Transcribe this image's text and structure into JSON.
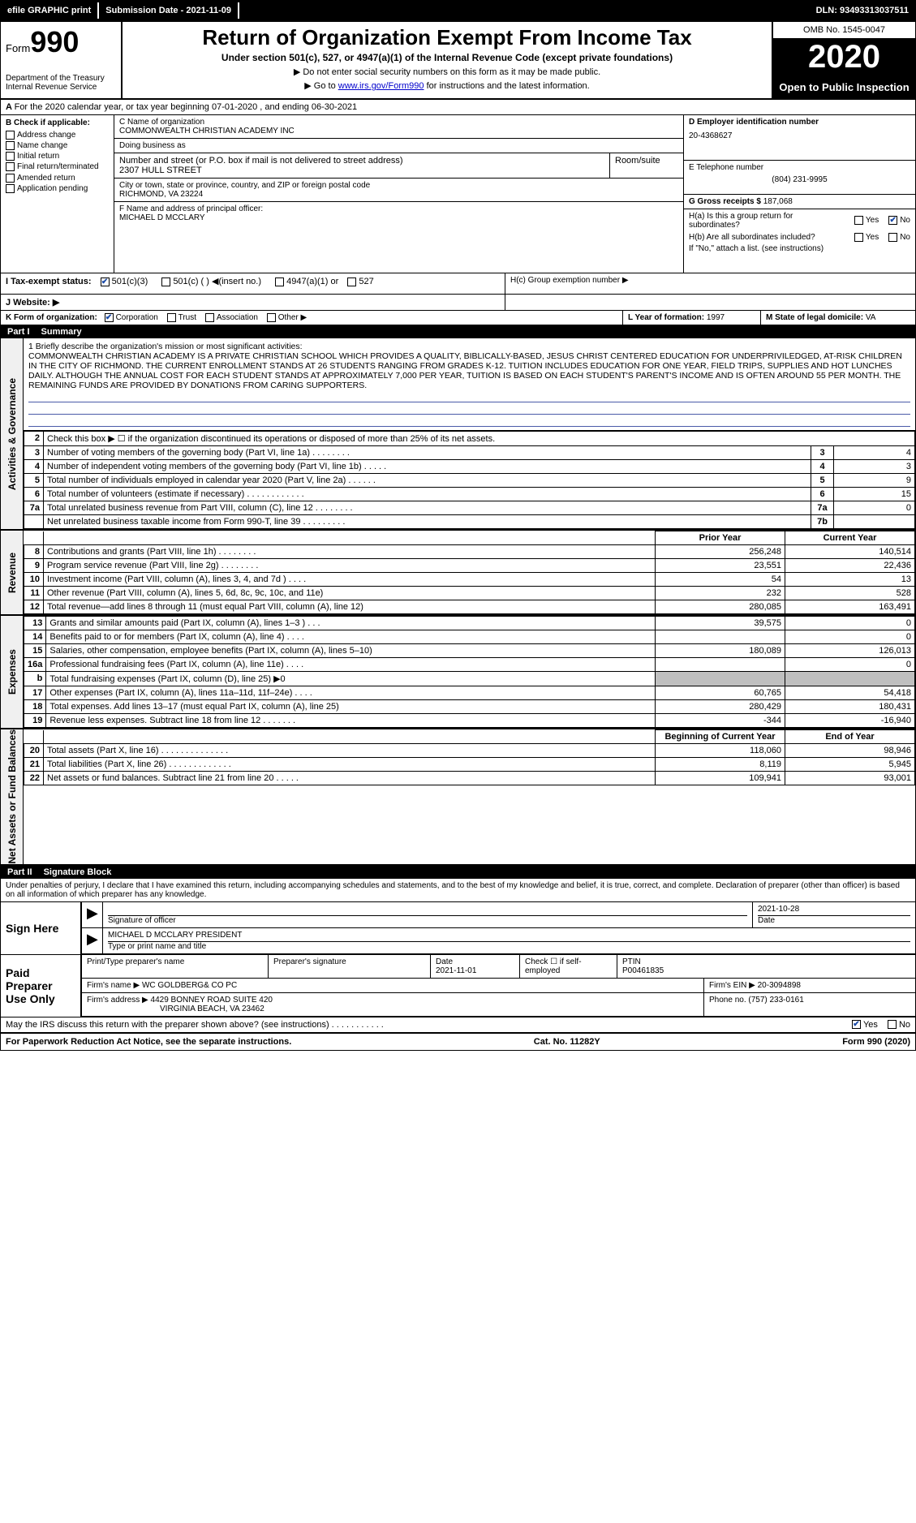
{
  "topbar": {
    "efile": "efile GRAPHIC print",
    "subdate_label": "Submission Date - ",
    "subdate": "2021-11-09",
    "dln_label": "DLN: ",
    "dln": "93493313037511"
  },
  "header": {
    "form_word": "Form",
    "form_no": "990",
    "dept": "Department of the Treasury\nInternal Revenue Service",
    "title": "Return of Organization Exempt From Income Tax",
    "sub": "Under section 501(c), 527, or 4947(a)(1) of the Internal Revenue Code (except private foundations)",
    "note1": "▶ Do not enter social security numbers on this form as it may be made public.",
    "note2_pre": "▶ Go to ",
    "note2_link": "www.irs.gov/Form990",
    "note2_post": " for instructions and the latest information.",
    "omb": "OMB No. 1545-0047",
    "year": "2020",
    "inspect": "Open to Public Inspection"
  },
  "A": {
    "text": "For the 2020 calendar year, or tax year beginning 07-01-2020  , and ending 06-30-2021"
  },
  "B": {
    "title": "B Check if applicable:",
    "items": [
      "Address change",
      "Name change",
      "Initial return",
      "Final return/terminated",
      "Amended return",
      "Application pending"
    ]
  },
  "C": {
    "name_label": "C Name of organization",
    "name": "COMMONWEALTH CHRISTIAN ACADEMY INC",
    "dba_label": "Doing business as",
    "dba": "",
    "street_label": "Number and street (or P.O. box if mail is not delivered to street address)",
    "street": "2307 HULL STREET",
    "room_label": "Room/suite",
    "room": "",
    "city_label": "City or town, state or province, country, and ZIP or foreign postal code",
    "city": "RICHMOND, VA  23224",
    "officer_label": "F  Name and address of principal officer:",
    "officer": "MICHAEL D MCCLARY"
  },
  "D": {
    "label": "D Employer identification number",
    "ein": "20-4368627"
  },
  "E": {
    "label": "E Telephone number",
    "phone": "(804) 231-9995"
  },
  "G": {
    "label": "G Gross receipts $ ",
    "val": "187,068"
  },
  "H": {
    "a": "H(a)  Is this a group return for subordinates?",
    "a_no_checked": true,
    "b": "H(b)  Are all subordinates included?",
    "b_note": "If \"No,\" attach a list. (see instructions)",
    "c": "H(c)  Group exemption number ▶"
  },
  "I": {
    "label": "I  Tax-exempt status:",
    "opts": [
      "501(c)(3)",
      "501(c) (  ) ◀(insert no.)",
      "4947(a)(1) or",
      "527"
    ],
    "checked_idx": 0
  },
  "J": {
    "label": "J  Website: ▶",
    "val": ""
  },
  "K": {
    "label": "K Form of organization:",
    "opts": [
      "Corporation",
      "Trust",
      "Association",
      "Other ▶"
    ],
    "checked_idx": 0
  },
  "L": {
    "label": "L Year of formation: ",
    "val": "1997"
  },
  "M": {
    "label": "M State of legal domicile: ",
    "val": "VA"
  },
  "part1": {
    "label": "Part I",
    "title": "Summary"
  },
  "mission": {
    "label": "1  Briefly describe the organization's mission or most significant activities:",
    "text": "COMMONWEALTH CHRISTIAN ACADEMY IS A PRIVATE CHRISTIAN SCHOOL WHICH PROVIDES A QUALITY, BIBLICALLY-BASED, JESUS CHRIST CENTERED EDUCATION FOR UNDERPRIVILEDGED, AT-RISK CHILDREN IN THE CITY OF RICHMOND. THE CURRENT ENROLLMENT STANDS AT 26 STUDENTS RANGING FROM GRADES K-12. TUITION INCLUDES EDUCATION FOR ONE YEAR, FIELD TRIPS, SUPPLIES AND HOT LUNCHES DAILY. ALTHOUGH THE ANNUAL COST FOR EACH STUDENT STANDS AT APPROXIMATELY 7,000 PER YEAR, TUITION IS BASED ON EACH STUDENT'S PARENT'S INCOME AND IS OFTEN AROUND 55 PER MONTH. THE REMAINING FUNDS ARE PROVIDED BY DONATIONS FROM CARING SUPPORTERS."
  },
  "side_labels": {
    "ag": "Activities & Governance",
    "rev": "Revenue",
    "exp": "Expenses",
    "na": "Net Assets or Fund Balances"
  },
  "ag_rows": [
    {
      "n": "2",
      "t": "Check this box ▶ ☐  if the organization discontinued its operations or disposed of more than 25% of its net assets."
    },
    {
      "n": "3",
      "t": "Number of voting members of the governing body (Part VI, line 1a)  .  .  .  .  .  .  .  .",
      "lbl": "3",
      "v": "4"
    },
    {
      "n": "4",
      "t": "Number of independent voting members of the governing body (Part VI, line 1b)  .  .  .  .  .",
      "lbl": "4",
      "v": "3"
    },
    {
      "n": "5",
      "t": "Total number of individuals employed in calendar year 2020 (Part V, line 2a)  .  .  .  .  .  .",
      "lbl": "5",
      "v": "9"
    },
    {
      "n": "6",
      "t": "Total number of volunteers (estimate if necessary)  .  .  .  .  .  .  .  .  .  .  .  .",
      "lbl": "6",
      "v": "15"
    },
    {
      "n": "7a",
      "t": "Total unrelated business revenue from Part VIII, column (C), line 12  .  .  .  .  .  .  .  .",
      "lbl": "7a",
      "v": "0"
    },
    {
      "n": "",
      "t": "Net unrelated business taxable income from Form 990-T, line 39  .  .  .  .  .  .  .  .  .",
      "lbl": "7b",
      "v": ""
    }
  ],
  "py_cy_head": {
    "py": "Prior Year",
    "cy": "Current Year",
    "by": "Beginning of Current Year",
    "ey": "End of Year"
  },
  "rev_rows": [
    {
      "n": "8",
      "t": "Contributions and grants (Part VIII, line 1h)  .  .  .  .  .  .  .  .",
      "py": "256,248",
      "cy": "140,514"
    },
    {
      "n": "9",
      "t": "Program service revenue (Part VIII, line 2g)  .  .  .  .  .  .  .  .",
      "py": "23,551",
      "cy": "22,436"
    },
    {
      "n": "10",
      "t": "Investment income (Part VIII, column (A), lines 3, 4, and 7d )  .  .  .  .",
      "py": "54",
      "cy": "13"
    },
    {
      "n": "11",
      "t": "Other revenue (Part VIII, column (A), lines 5, 6d, 8c, 9c, 10c, and 11e)",
      "py": "232",
      "cy": "528"
    },
    {
      "n": "12",
      "t": "Total revenue—add lines 8 through 11 (must equal Part VIII, column (A), line 12)",
      "py": "280,085",
      "cy": "163,491"
    }
  ],
  "exp_rows": [
    {
      "n": "13",
      "t": "Grants and similar amounts paid (Part IX, column (A), lines 1–3 )  .  .  .",
      "py": "39,575",
      "cy": "0"
    },
    {
      "n": "14",
      "t": "Benefits paid to or for members (Part IX, column (A), line 4)  .  .  .  .",
      "py": "",
      "cy": "0"
    },
    {
      "n": "15",
      "t": "Salaries, other compensation, employee benefits (Part IX, column (A), lines 5–10)",
      "py": "180,089",
      "cy": "126,013"
    },
    {
      "n": "16a",
      "t": "Professional fundraising fees (Part IX, column (A), line 11e)  .  .  .  .",
      "py": "",
      "cy": "0"
    },
    {
      "n": "b",
      "t": "Total fundraising expenses (Part IX, column (D), line 25) ▶0",
      "py": "shade",
      "cy": "shade"
    },
    {
      "n": "17",
      "t": "Other expenses (Part IX, column (A), lines 11a–11d, 11f–24e)  .  .  .  .",
      "py": "60,765",
      "cy": "54,418"
    },
    {
      "n": "18",
      "t": "Total expenses. Add lines 13–17 (must equal Part IX, column (A), line 25)",
      "py": "280,429",
      "cy": "180,431"
    },
    {
      "n": "19",
      "t": "Revenue less expenses. Subtract line 18 from line 12  .  .  .  .  .  .  .",
      "py": "-344",
      "cy": "-16,940"
    }
  ],
  "na_rows": [
    {
      "n": "20",
      "t": "Total assets (Part X, line 16)  .  .  .  .  .  .  .  .  .  .  .  .  .  .",
      "py": "118,060",
      "cy": "98,946"
    },
    {
      "n": "21",
      "t": "Total liabilities (Part X, line 26)  .  .  .  .  .  .  .  .  .  .  .  .  .",
      "py": "8,119",
      "cy": "5,945"
    },
    {
      "n": "22",
      "t": "Net assets or fund balances. Subtract line 21 from line 20  .  .  .  .  .",
      "py": "109,941",
      "cy": "93,001"
    }
  ],
  "part2": {
    "label": "Part II",
    "title": "Signature Block"
  },
  "perjury": "Under penalties of perjury, I declare that I have examined this return, including accompanying schedules and statements, and to the best of my knowledge and belief, it is true, correct, and complete. Declaration of preparer (other than officer) is based on all information of which preparer has any knowledge.",
  "sign": {
    "here": "Sign Here",
    "sig_label": "Signature of officer",
    "date_label": "Date",
    "date": "2021-10-28",
    "name_label": "Type or print name and title",
    "name": "MICHAEL D MCCLARY PRESIDENT"
  },
  "prep": {
    "label": "Paid Preparer Use Only",
    "cols": [
      "Print/Type preparer's name",
      "Preparer's signature",
      "Date",
      "Check ☐ if self-employed",
      "PTIN"
    ],
    "date": "2021-11-01",
    "ptin": "P00461835",
    "firm_label": "Firm's name   ▶",
    "firm": "WC GOLDBERG& CO PC",
    "ein_label": "Firm's EIN ▶",
    "ein": "20-3094898",
    "addr_label": "Firm's address ▶",
    "addr1": "4429 BONNEY ROAD SUITE 420",
    "addr2": "VIRGINIA BEACH, VA  23462",
    "phone_label": "Phone no. ",
    "phone": "(757) 233-0161"
  },
  "discuss": {
    "q": "May the IRS discuss this return with the preparer shown above? (see instructions)  .  .  .  .  .  .  .  .  .  .  .",
    "yes_checked": true
  },
  "footer": {
    "l": "For Paperwork Reduction Act Notice, see the separate instructions.",
    "c": "Cat. No. 11282Y",
    "r": "Form 990 (2020)"
  }
}
